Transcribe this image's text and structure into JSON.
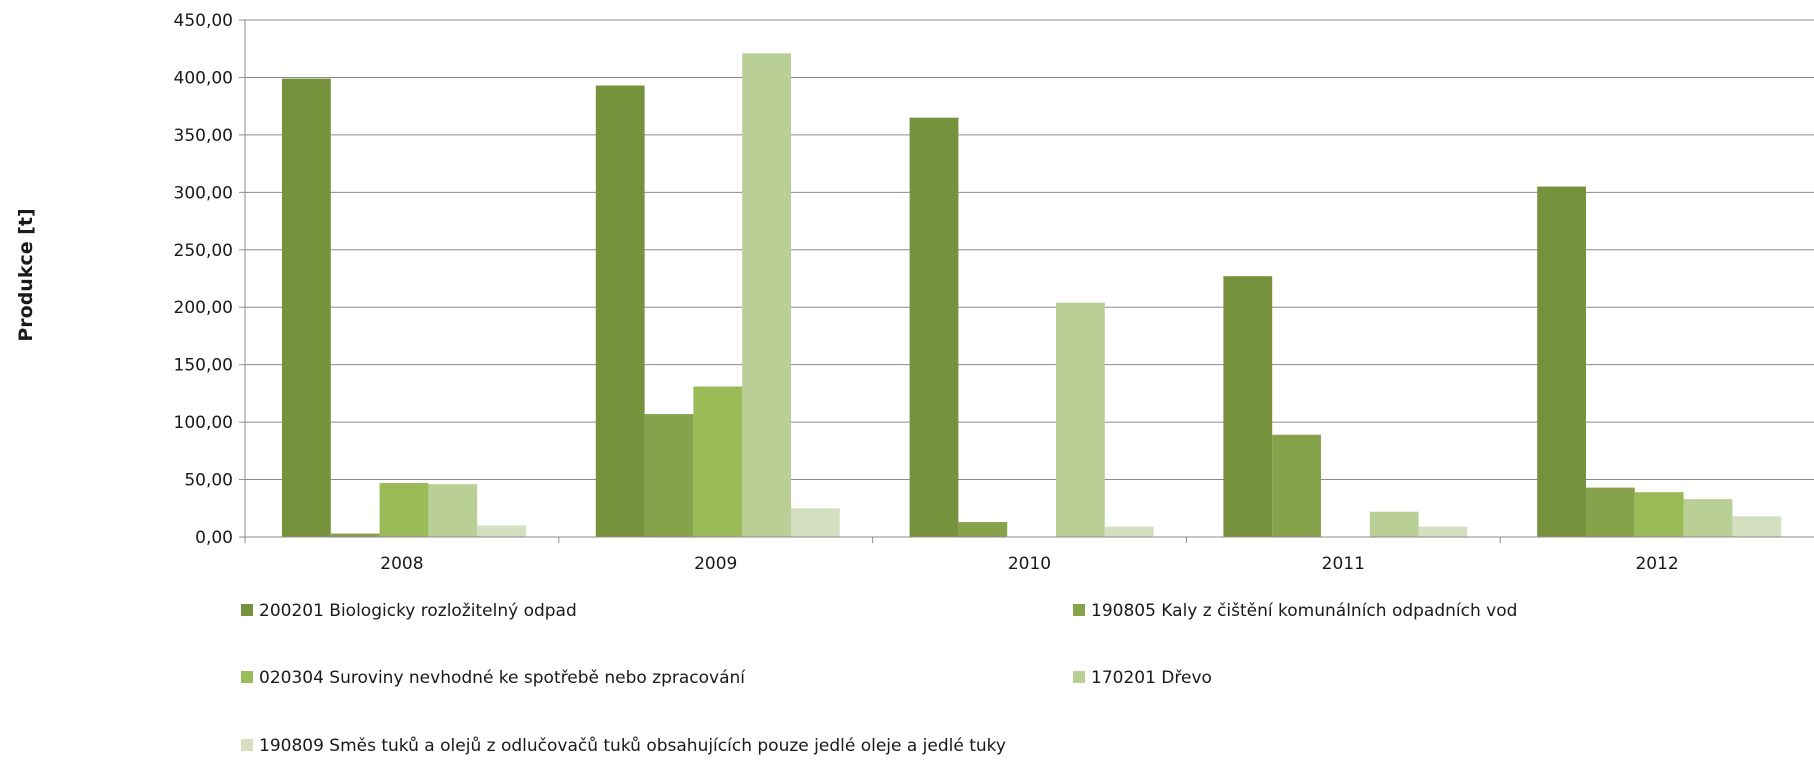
{
  "chart_data": {
    "type": "bar",
    "ylabel": "Produkce [t]",
    "xlabel": "",
    "title": "",
    "ylim": [
      0,
      450
    ],
    "y_ticks": [
      0,
      50,
      100,
      150,
      200,
      250,
      300,
      350,
      400,
      450
    ],
    "y_tick_labels": [
      "0,00",
      "50,00",
      "100,00",
      "150,00",
      "200,00",
      "250,00",
      "300,00",
      "350,00",
      "400,00",
      "450,00"
    ],
    "grid": true,
    "legend_position": "bottom",
    "categories": [
      "2008",
      "2009",
      "2010",
      "2011",
      "2012"
    ],
    "series": [
      {
        "name": "200201 Biologicky rozložitelný odpad",
        "color": "#77923c",
        "values": [
          399,
          393,
          365,
          227,
          305
        ]
      },
      {
        "name": "190805 Kaly z čištění komunálních odpadních vod",
        "color": "#86a34b",
        "values": [
          3,
          107,
          13,
          89,
          43
        ]
      },
      {
        "name": "020304 Suroviny nevhodné ke spotřebě nebo zpracování",
        "color": "#9bbb59",
        "values": [
          47,
          131,
          0,
          0,
          39
        ]
      },
      {
        "name": "170201 Dřevo",
        "color": "#b9cf96",
        "values": [
          46,
          421,
          204,
          22,
          33
        ]
      },
      {
        "name": "190809 Směs tuků a olejů z odlučovačů tuků obsahujících pouze jedlé oleje a jedlé tuky",
        "color": "#d3dfbf",
        "values": [
          10,
          25,
          9,
          9,
          18
        ]
      }
    ]
  }
}
